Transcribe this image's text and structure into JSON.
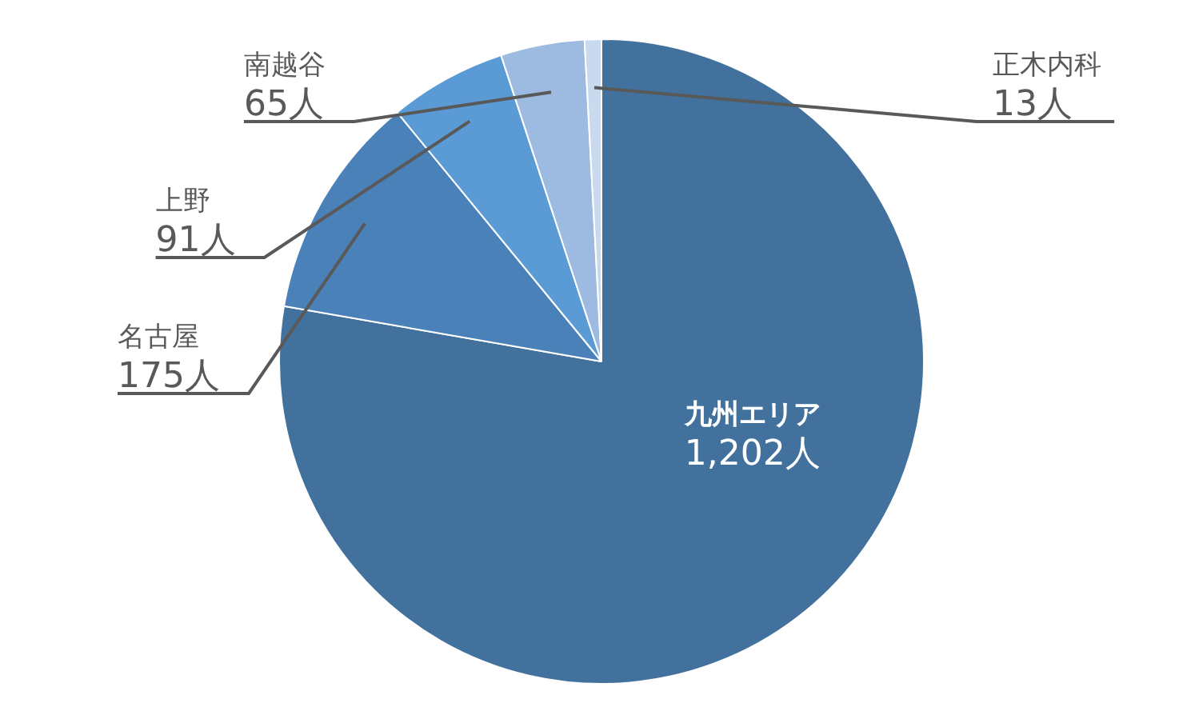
{
  "chart_data": {
    "type": "pie",
    "categories": [
      "九州エリア",
      "名古屋",
      "上野",
      "南越谷",
      "正木内科"
    ],
    "values": [
      1202,
      175,
      91,
      65,
      13
    ],
    "colors": [
      "#41719c",
      "#4a81b9",
      "#5b9bd5",
      "#9dbbe1",
      "#c9d9ee"
    ],
    "value_labels": [
      "1,202人",
      "175人",
      "91人",
      "65人",
      "13人"
    ],
    "legend": false
  }
}
